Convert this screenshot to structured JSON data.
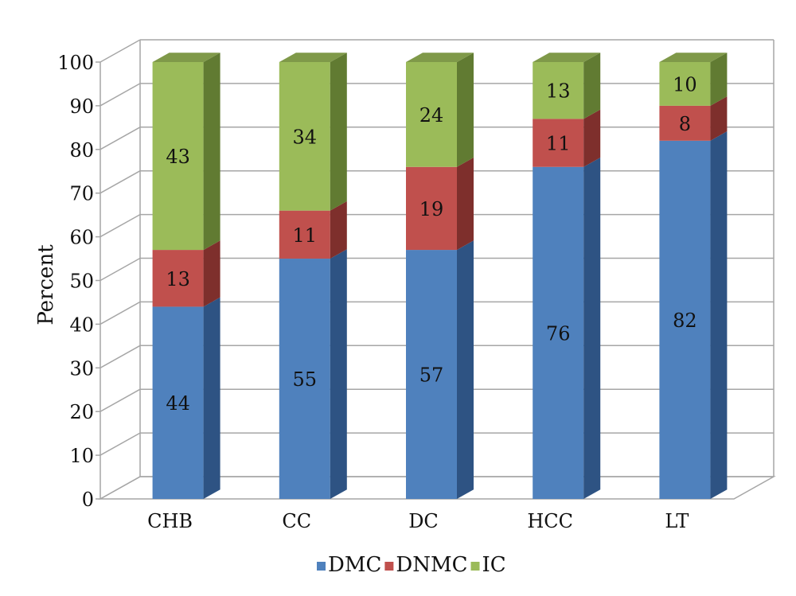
{
  "chart_data": {
    "type": "bar",
    "stacked": true,
    "three_d": true,
    "categories": [
      "CHB",
      "CC",
      "DC",
      "HCC",
      "LT"
    ],
    "series": [
      {
        "name": "DMC",
        "values": [
          44,
          55,
          57,
          76,
          82
        ],
        "color": "#4F81BD",
        "side_color": "#2E5383"
      },
      {
        "name": "DNMC",
        "values": [
          13,
          11,
          19,
          11,
          8
        ],
        "color": "#C0504D",
        "side_color": "#7E2F2C"
      },
      {
        "name": "IC",
        "values": [
          43,
          34,
          24,
          13,
          10
        ],
        "color": "#9BBB59",
        "side_color": "#617B32"
      }
    ],
    "ylabel": "Percent",
    "ylim": [
      0,
      100
    ],
    "yticks": [
      "0",
      "10",
      "20",
      "30",
      "40",
      "50",
      "60",
      "70",
      "80",
      "90",
      "100"
    ],
    "grid": true,
    "legend_position": "bottom"
  }
}
